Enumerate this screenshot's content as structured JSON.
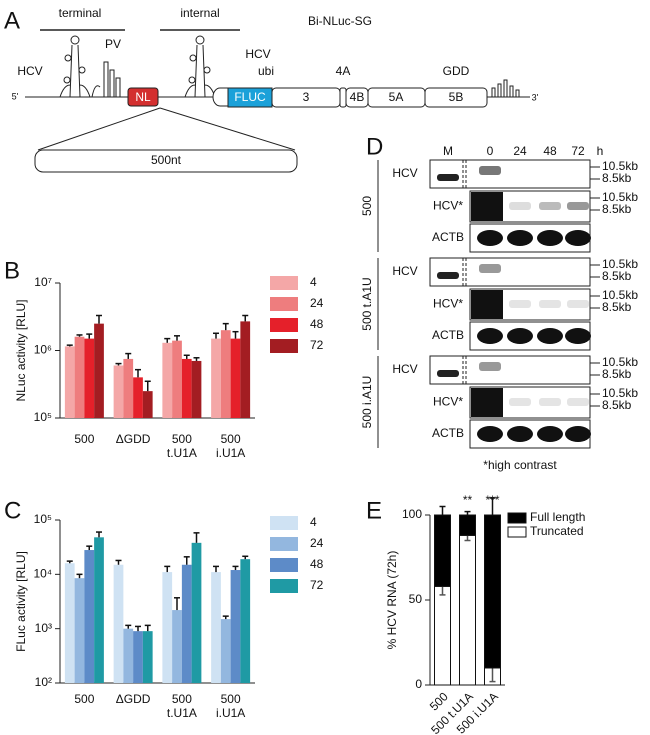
{
  "panel_labels": [
    "A",
    "B",
    "C",
    "D",
    "E"
  ],
  "diagram": {
    "title": "Bi-NLuc-SG",
    "region_labels": [
      "terminal",
      "internal"
    ],
    "element_labels": [
      "HCV",
      "PV",
      "HCV"
    ],
    "ends": [
      "5'",
      "3'"
    ],
    "boxes": [
      "NL",
      "FLUC",
      "3",
      "4B",
      "5A",
      "5B"
    ],
    "markers": [
      "ubi",
      "4A",
      "GDD"
    ],
    "insert": "500nt"
  },
  "blot": {
    "lanes": [
      "M",
      "0",
      "24",
      "48",
      "72"
    ],
    "unit": "h",
    "groups": [
      {
        "label": "500",
        "rows": [
          "HCV",
          "HCV*",
          "ACTB"
        ]
      },
      {
        "label": "500 t.A1U",
        "rows": [
          "HCV",
          "HCV*",
          "ACTB"
        ]
      },
      {
        "label": "500 i.A1U",
        "rows": [
          "HCV",
          "HCV*",
          "ACTB"
        ]
      }
    ],
    "size_markers": [
      "10.5kb",
      "8.5kb"
    ],
    "footnote": "*high contrast"
  },
  "chart_data": [
    {
      "type": "bar",
      "log_scale": true,
      "y_label": "NLuc activity [RLU]",
      "legend": "right",
      "categories": [
        "500",
        "ΔGDD",
        "500 t.U1A",
        "500 i.U1A"
      ],
      "series": [
        {
          "name": "4",
          "color": "#f4a7a7",
          "values": [
            1150000,
            600000,
            1300000,
            1500000
          ],
          "errors": [
            50000,
            40000,
            200000,
            300000
          ]
        },
        {
          "name": "24",
          "color": "#ee7d7e",
          "values": [
            1600000,
            750000,
            1400000,
            2000000
          ],
          "errors": [
            100000,
            150000,
            250000,
            500000
          ]
        },
        {
          "name": "48",
          "color": "#e5202a",
          "values": [
            1500000,
            400000,
            750000,
            1500000
          ],
          "errors": [
            250000,
            120000,
            100000,
            400000
          ]
        },
        {
          "name": "72",
          "color": "#a31d22",
          "values": [
            2500000,
            250000,
            700000,
            2700000
          ],
          "errors": [
            800000,
            100000,
            80000,
            600000
          ]
        }
      ],
      "ylim": [
        100000,
        10000000
      ],
      "yticks": [
        {
          "value": 100000,
          "label": "10⁵"
        },
        {
          "value": 1000000,
          "label": "10⁶"
        },
        {
          "value": 10000000,
          "label": "10⁷"
        }
      ]
    },
    {
      "type": "bar",
      "log_scale": true,
      "y_label": "FLuc activity [RLU]",
      "legend": "right",
      "categories": [
        "500",
        "ΔGDD",
        "500 t.U1A",
        "500 i.U1A"
      ],
      "series": [
        {
          "name": "4",
          "color": "#cfe2f3",
          "values": [
            16000,
            15000,
            11000,
            11000
          ],
          "errors": [
            1500,
            3000,
            3000,
            3000
          ]
        },
        {
          "name": "24",
          "color": "#93b7df",
          "values": [
            8500,
            1000,
            2200,
            1500
          ],
          "errors": [
            1500,
            150,
            1500,
            200
          ]
        },
        {
          "name": "48",
          "color": "#5d8bc8",
          "values": [
            28000,
            900,
            15000,
            12000
          ],
          "errors": [
            5000,
            200,
            6000,
            2000
          ]
        },
        {
          "name": "72",
          "color": "#1f9aa4",
          "values": [
            48000,
            900,
            38000,
            19000
          ],
          "errors": [
            12000,
            250,
            20000,
            2500
          ]
        }
      ],
      "ylim": [
        100,
        100000
      ],
      "yticks": [
        {
          "value": 100,
          "label": "10²"
        },
        {
          "value": 1000,
          "label": "10³"
        },
        {
          "value": 10000,
          "label": "10⁴"
        },
        {
          "value": 100000,
          "label": "10⁵"
        }
      ]
    },
    {
      "type": "stacked_bar",
      "y_label": "% HCV RNA (72h)",
      "legend": "top-right",
      "categories": [
        "500",
        "500 t.U1A",
        "500 i.U1A"
      ],
      "series": [
        {
          "name": "Truncated",
          "color": "#ffffff",
          "values": [
            58,
            88,
            10
          ],
          "errors": [
            5,
            3,
            8
          ]
        },
        {
          "name": "Full length",
          "color": "#000000",
          "values": [
            42,
            12,
            90
          ],
          "errors": [
            5,
            2,
            10
          ]
        }
      ],
      "annotations": [
        null,
        "**",
        "***"
      ],
      "ylim": [
        0,
        100
      ],
      "yticks": [
        0,
        50,
        100
      ]
    }
  ]
}
